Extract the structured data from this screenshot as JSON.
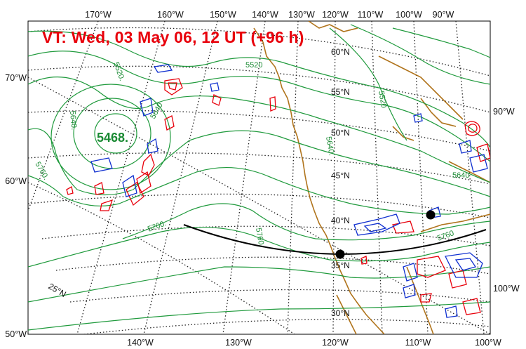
{
  "title": "VT:  Wed, 03 May 06, 12 UT (+96 h)",
  "top_labels": [
    "170°W",
    "160°W",
    "150°W",
    "140°W",
    "130°W",
    "120°W",
    "110°W",
    "100°W",
    "90°W"
  ],
  "bottom_labels": [
    "140°W",
    "130°W",
    "120°W",
    "110°W",
    "100°W"
  ],
  "left_labels": [
    "70°W",
    "60°W",
    "50°W"
  ],
  "right_labels": [
    "90°W",
    "100°W"
  ],
  "lat_labels": [
    "60°N",
    "55°N",
    "50°N",
    "45°N",
    "40°N",
    "35°N",
    "30°N",
    "25°N"
  ],
  "contour_labels": [
    "5520",
    "5520.",
    "5520",
    "5640.",
    "5640",
    "5640.",
    "5640",
    "5760.",
    "5760.",
    "5760",
    "5760"
  ],
  "low_center": "5468.",
  "colors": {
    "title": "#e8000b",
    "height_contour": "#1f9a3c",
    "contour_label": "#1a8a33",
    "coastline": "#b0741c",
    "positive": "#e8000b",
    "negative": "#1030d0",
    "graticule": "#222222",
    "track": "#000000"
  },
  "track_points": 2
}
